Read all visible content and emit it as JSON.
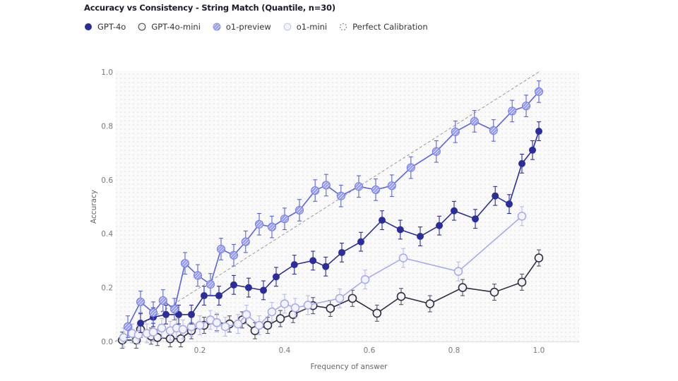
{
  "chart_data": {
    "type": "line",
    "title": "Accuracy vs Consistency - String Match (Quantile, n=30)",
    "xlabel": "Frequency of answer",
    "ylabel": "Accuracy",
    "xlim": [
      0,
      1.095
    ],
    "ylim": [
      0,
      1.0
    ],
    "xticks": [
      "0.2",
      "0.4",
      "0.6",
      "0.8",
      "1.0"
    ],
    "yticks": [
      "0.0",
      "0.2",
      "0.4",
      "0.6",
      "0.8",
      "1.0"
    ],
    "grid": false,
    "legend_placement": "top-left",
    "background": "dotted",
    "series": [
      {
        "name": "GPT-4o",
        "style": "filled",
        "color": "#2b2d9b",
        "err": 0.035,
        "points": [
          [
            0.06,
            0.068
          ],
          [
            0.09,
            0.09
          ],
          [
            0.12,
            0.1
          ],
          [
            0.15,
            0.1
          ],
          [
            0.18,
            0.1
          ],
          [
            0.21,
            0.17
          ],
          [
            0.245,
            0.17
          ],
          [
            0.28,
            0.21
          ],
          [
            0.315,
            0.2
          ],
          [
            0.35,
            0.19
          ],
          [
            0.38,
            0.24
          ],
          [
            0.423,
            0.285
          ],
          [
            0.467,
            0.3
          ],
          [
            0.497,
            0.278
          ],
          [
            0.535,
            0.33
          ],
          [
            0.58,
            0.37
          ],
          [
            0.63,
            0.45
          ],
          [
            0.673,
            0.415
          ],
          [
            0.72,
            0.39
          ],
          [
            0.765,
            0.43
          ],
          [
            0.8,
            0.485
          ],
          [
            0.85,
            0.455
          ],
          [
            0.897,
            0.54
          ],
          [
            0.93,
            0.51
          ],
          [
            0.96,
            0.66
          ],
          [
            0.985,
            0.71
          ],
          [
            1.0,
            0.78
          ]
        ]
      },
      {
        "name": "GPT-4o-mini",
        "style": "outline",
        "color": "#2e2e45",
        "err": 0.03,
        "points": [
          [
            0.017,
            0.005
          ],
          [
            0.05,
            0.005
          ],
          [
            0.06,
            0.045
          ],
          [
            0.085,
            0.02
          ],
          [
            0.1,
            0.015
          ],
          [
            0.13,
            0.01
          ],
          [
            0.155,
            0.01
          ],
          [
            0.18,
            0.04
          ],
          [
            0.21,
            0.06
          ],
          [
            0.24,
            0.07
          ],
          [
            0.27,
            0.065
          ],
          [
            0.3,
            0.08
          ],
          [
            0.33,
            0.04
          ],
          [
            0.36,
            0.06
          ],
          [
            0.39,
            0.085
          ],
          [
            0.42,
            0.1
          ],
          [
            0.467,
            0.133
          ],
          [
            0.508,
            0.123
          ],
          [
            0.56,
            0.16
          ],
          [
            0.618,
            0.105
          ],
          [
            0.675,
            0.167
          ],
          [
            0.743,
            0.14
          ],
          [
            0.82,
            0.2
          ],
          [
            0.895,
            0.183
          ],
          [
            0.96,
            0.22
          ],
          [
            1.0,
            0.31
          ]
        ]
      },
      {
        "name": "o1-preview",
        "style": "hatched",
        "color": "#5a63e0",
        "err": 0.04,
        "points": [
          [
            0.03,
            0.055
          ],
          [
            0.06,
            0.147
          ],
          [
            0.09,
            0.107
          ],
          [
            0.113,
            0.152
          ],
          [
            0.14,
            0.12
          ],
          [
            0.165,
            0.29
          ],
          [
            0.195,
            0.245
          ],
          [
            0.225,
            0.212
          ],
          [
            0.25,
            0.343
          ],
          [
            0.28,
            0.32
          ],
          [
            0.308,
            0.37
          ],
          [
            0.34,
            0.435
          ],
          [
            0.37,
            0.425
          ],
          [
            0.4,
            0.455
          ],
          [
            0.435,
            0.487
          ],
          [
            0.472,
            0.56
          ],
          [
            0.498,
            0.58
          ],
          [
            0.533,
            0.54
          ],
          [
            0.575,
            0.575
          ],
          [
            0.615,
            0.563
          ],
          [
            0.653,
            0.578
          ],
          [
            0.698,
            0.645
          ],
          [
            0.758,
            0.705
          ],
          [
            0.803,
            0.778
          ],
          [
            0.848,
            0.817
          ],
          [
            0.893,
            0.783
          ],
          [
            0.937,
            0.855
          ],
          [
            0.97,
            0.874
          ],
          [
            1.0,
            0.927
          ]
        ]
      },
      {
        "name": "o1-mini",
        "style": "outline-light",
        "color": "#a8abf0",
        "err": 0.035,
        "points": [
          [
            0.02,
            0.015
          ],
          [
            0.04,
            0.03
          ],
          [
            0.055,
            0.025
          ],
          [
            0.075,
            0.03
          ],
          [
            0.09,
            0.035
          ],
          [
            0.11,
            0.05
          ],
          [
            0.13,
            0.04
          ],
          [
            0.145,
            0.05
          ],
          [
            0.16,
            0.045
          ],
          [
            0.18,
            0.055
          ],
          [
            0.2,
            0.06
          ],
          [
            0.225,
            0.08
          ],
          [
            0.24,
            0.07
          ],
          [
            0.26,
            0.055
          ],
          [
            0.29,
            0.065
          ],
          [
            0.31,
            0.1
          ],
          [
            0.34,
            0.06
          ],
          [
            0.37,
            0.11
          ],
          [
            0.4,
            0.14
          ],
          [
            0.425,
            0.125
          ],
          [
            0.455,
            0.135
          ],
          [
            0.53,
            0.16
          ],
          [
            0.59,
            0.23
          ],
          [
            0.68,
            0.31
          ],
          [
            0.81,
            0.26
          ],
          [
            0.96,
            0.465
          ]
        ]
      },
      {
        "name": "Perfect Calibration",
        "style": "dashed",
        "color": "#999999",
        "points": [
          [
            0,
            0
          ],
          [
            1,
            1
          ]
        ]
      }
    ]
  }
}
